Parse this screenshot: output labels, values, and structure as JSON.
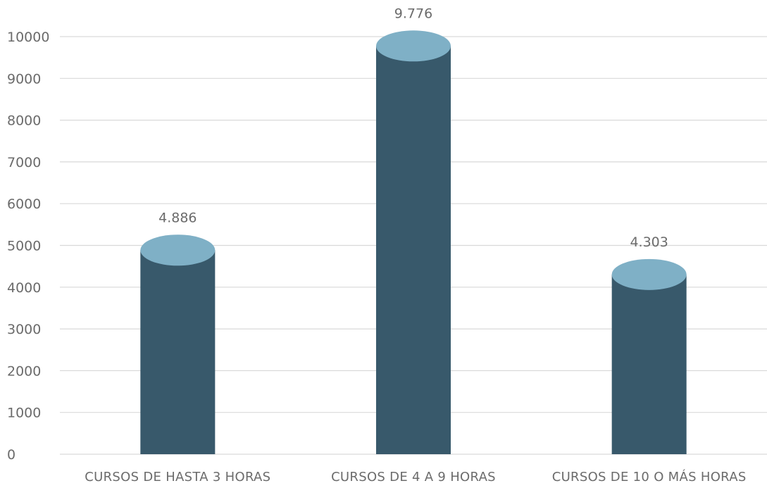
{
  "chart_data": {
    "type": "bar",
    "style": "cylinder",
    "categories": [
      "CURSOS DE HASTA 3 HORAS",
      "CURSOS DE 4 A 9 HORAS",
      "CURSOS DE 10 O MÁS HORAS"
    ],
    "values": [
      4886,
      9776,
      4303
    ],
    "data_labels": [
      "4.886",
      "9.776",
      "4.303"
    ],
    "title": "",
    "xlabel": "",
    "ylabel": "",
    "ylim": [
      0,
      10000
    ],
    "yticks": [
      0,
      1000,
      2000,
      3000,
      4000,
      5000,
      6000,
      7000,
      8000,
      9000,
      10000
    ],
    "ytick_labels": [
      "0",
      "1000",
      "2000",
      "3000",
      "4000",
      "5000",
      "6000",
      "7000",
      "8000",
      "9000",
      "10000"
    ],
    "grid": true,
    "legend": "none",
    "colors": {
      "bar_body": "#38596b",
      "bar_top": "#7fb0c6",
      "gridline": "#d9d9d9",
      "text": "#6b6b6b"
    }
  }
}
